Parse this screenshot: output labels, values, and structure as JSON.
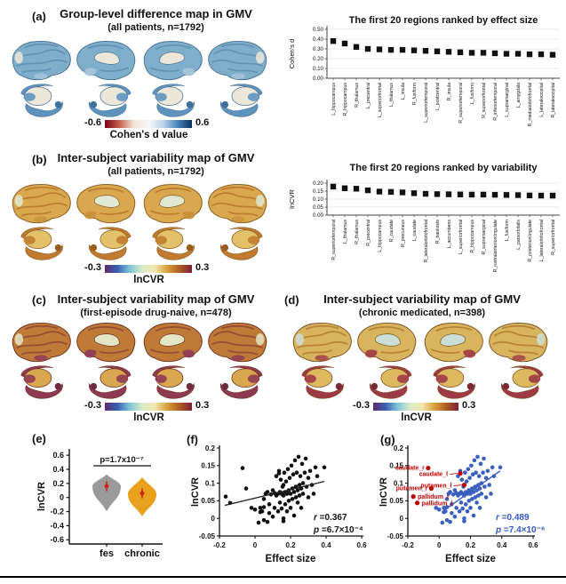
{
  "figure": {
    "panels": {
      "a": {
        "label": "(a)",
        "title": "Group-level difference map in GMV",
        "subtitle": "(all patients, n=1792)",
        "colorbar": {
          "min": "-0.6",
          "max": "0.6",
          "caption": "Cohen's d value",
          "stops": [
            "#7f0018",
            "#c4604a",
            "#f2e3d5",
            "#f7f7f7",
            "#bcd5e8",
            "#4a84bc",
            "#0a3060"
          ]
        },
        "brain_colors": {
          "outline": "#4a7296",
          "cortex": "#7FAECB",
          "gyri": "#5d8cb0",
          "patch": "#EDE7DA",
          "patch2": "#a9c6dc",
          "sub_main": "#EDE7DA",
          "sub_accent": "#5e93bd",
          "sub_dark": "#3f6f9a"
        }
      },
      "b": {
        "label": "(b)",
        "title": "Inter-subject variability map of GMV",
        "subtitle": "(all patients, n=1792)",
        "colorbar": {
          "min": "-0.3",
          "max": "0.3",
          "caption": "lnCVR",
          "stops": [
            "#5a2d6e",
            "#3a5fb0",
            "#7fc4d8",
            "#d8ecc8",
            "#f2e8b0",
            "#d8a23c",
            "#b05a20",
            "#7a1f3a"
          ]
        },
        "brain_colors": {
          "outline": "#8a5a20",
          "cortex": "#D9A84E",
          "gyri": "#b4762c",
          "patch": "#DFE8D2",
          "patch2": "#c8903a",
          "sub_main": "#E3C06A",
          "sub_accent": "#C07B2E",
          "sub_dark": "#9a5c22"
        }
      },
      "c": {
        "label": "(c)",
        "title": "Inter-subject variability map of GMV",
        "subtitle": "(first-episode drug-naive, n=478)",
        "colorbar": {
          "min": "-0.3",
          "max": "0.3",
          "caption": "lnCVR",
          "stops": [
            "#5a2d6e",
            "#3a5fb0",
            "#7fc4d8",
            "#d8ecc8",
            "#f2e8b0",
            "#d8a23c",
            "#b05a20",
            "#7a1f3a"
          ]
        },
        "brain_colors": {
          "outline": "#6e3020",
          "cortex": "#C07A38",
          "gyri": "#8E4430",
          "patch": "#E4E6C8",
          "patch2": "#8E3A5A",
          "sub_main": "#D9A84E",
          "sub_accent": "#8E3A52",
          "sub_dark": "#6e2a40"
        }
      },
      "d": {
        "label": "(d)",
        "title": "Inter-subject variability map of GMV",
        "subtitle": "(chronic medicated, n=398)",
        "colorbar": {
          "min": "-0.3",
          "max": "0.3",
          "caption": "lnCVR",
          "stops": [
            "#5a2d6e",
            "#3a5fb0",
            "#7fc4d8",
            "#d8ecc8",
            "#f2e8b0",
            "#d8a23c",
            "#b05a20",
            "#7a1f3a"
          ]
        },
        "brain_colors": {
          "outline": "#7a5020",
          "cortex": "#D9B45E",
          "gyri": "#b07a30",
          "patch": "#CBDED6",
          "patch2": "#9E3A46",
          "sub_main": "#DDB85E",
          "sub_accent": "#9E3A46",
          "sub_dark": "#7a2a36"
        }
      },
      "e": {
        "label": "(e)"
      },
      "f": {
        "label": "(f)"
      },
      "g": {
        "label": "(g)"
      }
    }
  },
  "chart_data": [
    {
      "id": "rank_effect",
      "type": "scatter",
      "title": "The first 20 regions ranked by effect size",
      "ylabel": "Cohen's d",
      "yticks": [
        "0.00",
        "0.10",
        "0.20",
        "0.30",
        "0.40",
        "0.50"
      ],
      "ylim": [
        0,
        0.5
      ],
      "grid": true,
      "marker": "square",
      "marker_color": "#111111",
      "categories": [
        "L_hippocampus",
        "R_hippocampus",
        "R_thalamus",
        "L_precentral",
        "L_superiorfrontal",
        "L_thalamus",
        "L_insula",
        "R_fusiform",
        "L_superiortemporal",
        "L_postcentral",
        "R_insula",
        "R_superiortemporal",
        "L_fusiform",
        "R_superiorfrontal",
        "R_inferiortemporal",
        "L_supramarginal",
        "L_amygdala",
        "R_medialorbitofrontal",
        "L_lateraloccipital",
        "R_lateraloccipital"
      ],
      "values": [
        0.38,
        0.355,
        0.32,
        0.3,
        0.295,
        0.29,
        0.29,
        0.285,
        0.28,
        0.275,
        0.27,
        0.265,
        0.26,
        0.26,
        0.255,
        0.25,
        0.25,
        0.245,
        0.245,
        0.24
      ]
    },
    {
      "id": "rank_variability",
      "type": "scatter",
      "title": "The first 20 regions ranked by variability",
      "ylabel": "lnCVR",
      "yticks": [
        "0.00",
        "0.05",
        "0.10",
        "0.15",
        "0.20"
      ],
      "ylim": [
        0,
        0.2
      ],
      "grid": true,
      "marker": "square",
      "marker_color": "#111111",
      "categories": [
        "R_superiortemporal",
        "L_thalamus",
        "R_thalamus",
        "R_precentral",
        "L_hippocampus",
        "R_caudate",
        "R_precuneus",
        "L_caudate",
        "R_lateralorbitofrontal",
        "R_bankssts",
        "L_accumbens",
        "L_superiorfrontal",
        "R_hippocampus",
        "R_supramarginal",
        "R_rostralanteriorcingulate",
        "L_fusiform",
        "L_parsorbitalis",
        "R_posteriorcingulate",
        "L_lateralorbitofrontal",
        "R_superiorfrontal"
      ],
      "values": [
        0.178,
        0.168,
        0.165,
        0.155,
        0.147,
        0.145,
        0.142,
        0.137,
        0.133,
        0.131,
        0.13,
        0.129,
        0.128,
        0.128,
        0.127,
        0.126,
        0.125,
        0.123,
        0.122,
        0.122
      ]
    },
    {
      "id": "violin_compare",
      "type": "violin",
      "ylabel": "lnCVR",
      "yticks": [
        "0.6",
        "0.4",
        "0.2",
        "0",
        "-0.2",
        "-0.4",
        "-0.6"
      ],
      "ylim": [
        -0.66,
        0.69
      ],
      "p_label": "p=1.7x10⁻⁷",
      "marker_color": "#D42020",
      "categories": [
        {
          "name": "fes",
          "color": "#9A9A9A",
          "mean": 0.16,
          "whisker": 0.07,
          "top": 0.33,
          "bulge": 0.16,
          "bottom": -0.2
        },
        {
          "name": "chronic",
          "color": "#E8A11D",
          "mean": 0.06,
          "whisker": 0.07,
          "top": 0.29,
          "bulge": 0.05,
          "bottom": -0.27
        }
      ]
    },
    {
      "id": "scatter_fes",
      "type": "xyscatter",
      "xlabel": "Effect size",
      "ylabel": "lnCVR",
      "xticks": [
        "-0.2",
        "0",
        "0.2",
        "0.4",
        "0.6"
      ],
      "yticks": [
        "-0.05",
        "0",
        "0.05",
        "0.1",
        "0.15",
        "0.2"
      ],
      "xlim": [
        -0.2,
        0.6
      ],
      "ylim": [
        -0.05,
        0.2
      ],
      "r_label": "r =0.367",
      "p_label": "p =6.7×10⁻⁴",
      "dot_color": "#111111",
      "line_color": "#222222",
      "regression_line": {
        "x1": -0.17,
        "y1": 0.037,
        "x2": 0.39,
        "y2": 0.105
      },
      "include_subcortical_as_base": true,
      "points": [
        [
          -0.02,
          0.03
        ],
        [
          0,
          0.025
        ],
        [
          0.02,
          -0.012
        ],
        [
          0.03,
          0.018
        ],
        [
          0.03,
          0.03
        ],
        [
          0.04,
          0.02
        ],
        [
          0.05,
          0.032
        ],
        [
          0.05,
          -0.005
        ],
        [
          0.05,
          0.055
        ],
        [
          0.06,
          0.07
        ],
        [
          0.07,
          0.075
        ],
        [
          0.07,
          -0.01
        ],
        [
          0.08,
          0.04
        ],
        [
          0.08,
          0.015
        ],
        [
          0.09,
          0.068
        ],
        [
          0.1,
          0.08
        ],
        [
          0.1,
          0.005
        ],
        [
          0.11,
          0.072
        ],
        [
          0.11,
          0.03
        ],
        [
          0.12,
          0.065
        ],
        [
          0.12,
          0.12
        ],
        [
          0.13,
          0.07
        ],
        [
          0.13,
          0.02
        ],
        [
          0.135,
          0.135
        ],
        [
          0.14,
          0.075
        ],
        [
          0.14,
          0.045
        ],
        [
          0.145,
          0.11
        ],
        [
          0.15,
          0.07
        ],
        [
          0.15,
          0.028
        ],
        [
          0.155,
          0.09
        ],
        [
          0.16,
          0.065
        ],
        [
          0.16,
          0
        ],
        [
          0.16,
          -0.008
        ],
        [
          0.165,
          0.13
        ],
        [
          0.17,
          0.075
        ],
        [
          0.17,
          0.04
        ],
        [
          0.175,
          0.105
        ],
        [
          0.18,
          0.07
        ],
        [
          0.18,
          0.02
        ],
        [
          0.185,
          0.14
        ],
        [
          0.19,
          0.08
        ],
        [
          0.19,
          0.05
        ],
        [
          0.195,
          0.115
        ],
        [
          0.2,
          0.07
        ],
        [
          0.2,
          0.03
        ],
        [
          0.205,
          0.15
        ],
        [
          0.21,
          0.085
        ],
        [
          0.21,
          0.055
        ],
        [
          0.215,
          0.125
        ],
        [
          0.22,
          0.075
        ],
        [
          0.22,
          0.008
        ],
        [
          0.225,
          0.165
        ],
        [
          0.23,
          0.09
        ],
        [
          0.23,
          0.06
        ],
        [
          0.235,
          0.13
        ],
        [
          0.24,
          0.08
        ],
        [
          0.24,
          0.045
        ],
        [
          0.245,
          0.175
        ],
        [
          0.25,
          0.095
        ],
        [
          0.25,
          0.065
        ],
        [
          0.255,
          0.12
        ],
        [
          0.26,
          0.085
        ],
        [
          0.26,
          0.03
        ],
        [
          0.265,
          0.155
        ],
        [
          0.27,
          0.1
        ],
        [
          0.27,
          0.07
        ],
        [
          0.28,
          0.13
        ],
        [
          0.285,
          0.17
        ],
        [
          0.29,
          0.09
        ],
        [
          0.3,
          0.115
        ],
        [
          0.3,
          0.06
        ],
        [
          0.31,
          0.135
        ],
        [
          0.32,
          0.095
        ],
        [
          0.33,
          0.07
        ],
        [
          0.34,
          0.145
        ],
        [
          0.35,
          0.12
        ],
        [
          0.39,
          0.145
        ]
      ],
      "subcortical": [
        {
          "label": "caudate_r",
          "x": -0.07,
          "y": 0.143,
          "side": "left"
        },
        {
          "label": "caudate_l",
          "x": 0.135,
          "y": 0.128,
          "side": "leader-left"
        },
        {
          "label": "putamen_r",
          "x": -0.05,
          "y": 0.085,
          "side": "left"
        },
        {
          "label": "putamen_l",
          "x": 0.16,
          "y": 0.095,
          "side": "leader-left"
        },
        {
          "label": "pallidum_r",
          "x": -0.165,
          "y": 0.062,
          "side": "right"
        },
        {
          "label": "pallidum_l",
          "x": -0.14,
          "y": 0.044,
          "side": "right"
        }
      ]
    },
    {
      "id": "scatter_chronic",
      "type": "xyscatter",
      "xlabel": "Effect size",
      "ylabel": "lnCVR",
      "xticks": [
        "-0.2",
        "0",
        "0.2",
        "0.4",
        "0.6"
      ],
      "yticks": [
        "-0.05",
        "0",
        "0.05",
        "0.1",
        "0.15",
        "0.2"
      ],
      "xlim": [
        -0.2,
        0.6
      ],
      "ylim": [
        -0.05,
        0.2
      ],
      "r_label": "r =0.489",
      "p_label": "p =7.4×10⁻⁶",
      "dot_color": "#3A5FC0",
      "line_color": "#3A5FC0",
      "annotation_color": "#3558C0",
      "highlight_color": "#C00000",
      "regression_line": {
        "x1": 0.02,
        "y1": 0.02,
        "x2": 0.39,
        "y2": 0.135
      },
      "points_same_as": "scatter_fes",
      "highlight_subcortical": true
    }
  ]
}
